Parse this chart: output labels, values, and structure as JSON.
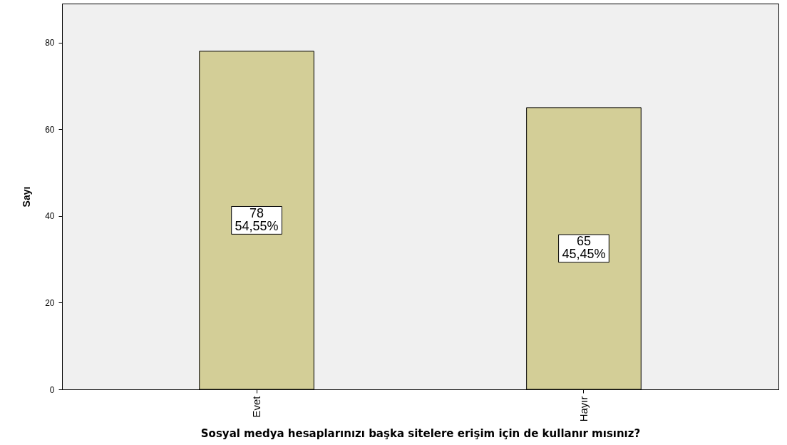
{
  "chart_data": {
    "type": "bar",
    "xlabel": "Sosyal medya hesaplarınızı başka sitelere erişim için de kullanır mısınız?",
    "ylabel": "Sayı",
    "categories": [
      "Evet",
      "Hayır"
    ],
    "values": [
      78,
      65
    ],
    "value_labels": [
      "78\n54,55%",
      "65\n45,45%"
    ],
    "color": "#d3ce97",
    "ylim": [
      0,
      89
    ],
    "yticks": [
      0,
      20,
      40,
      60,
      80
    ]
  }
}
